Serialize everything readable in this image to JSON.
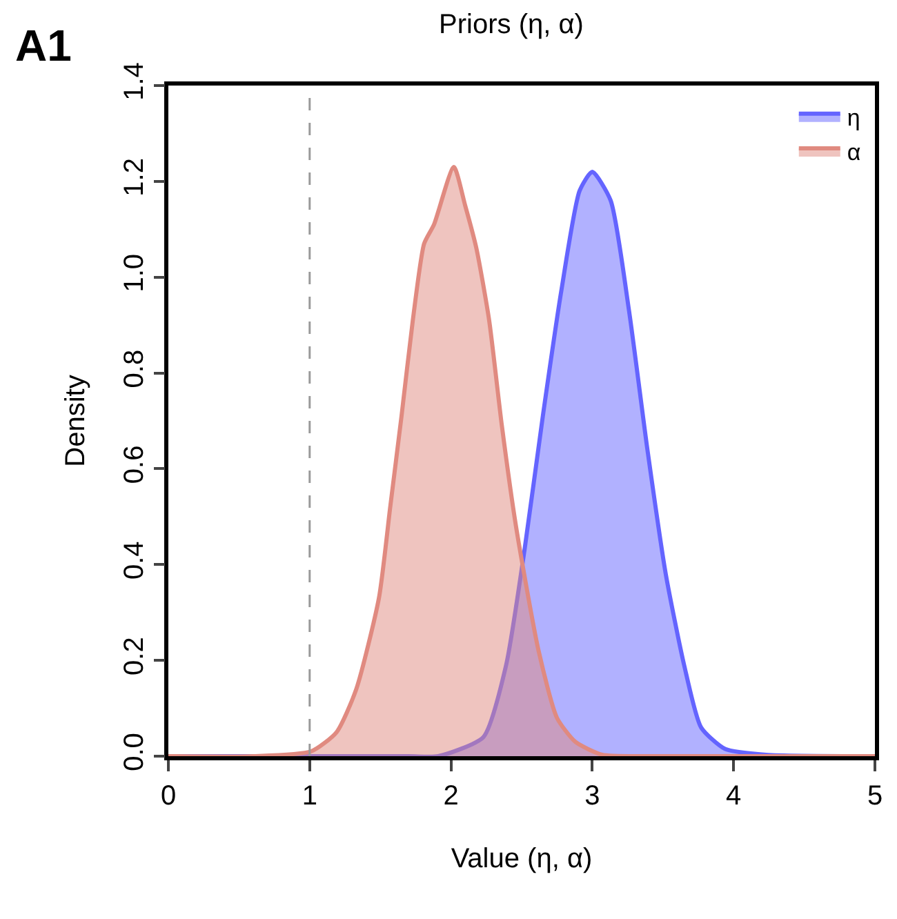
{
  "chart_data": {
    "type": "area",
    "title": "Priors (η, α)",
    "xlabel": "Value (η, α)",
    "ylabel": "Density",
    "annotations": [
      "A1"
    ],
    "xlim": [
      0,
      5
    ],
    "xticks": [
      0,
      1,
      2,
      3,
      4,
      5
    ],
    "ylim": [
      0,
      1.4
    ],
    "yticks": [
      {
        "value": 0,
        "label": "0.0"
      },
      0.2,
      0.4,
      0.6,
      0.8,
      {
        "value": 1,
        "label": "1.0"
      },
      1.2,
      1.4
    ],
    "legend": "top right",
    "marker": "none",
    "line_style": "solid",
    "ref_lines": [
      {
        "axis": "x",
        "value": 1,
        "label": null,
        "color": "#999999",
        "line_style": "dashed"
      }
    ],
    "series": [
      {
        "name": "η",
        "color": "#6464ff",
        "x": [
          0,
          1.7,
          1.91,
          2.23,
          2.39,
          2.52,
          2.65,
          2.78,
          2.91,
          3.0,
          3.13,
          3.26,
          3.39,
          3.52,
          3.65,
          3.77,
          3.94,
          4.23,
          5
        ],
        "values": [
          0,
          0,
          0.0,
          0.04,
          0.19,
          0.43,
          0.71,
          0.97,
          1.18,
          1.22,
          1.16,
          0.93,
          0.64,
          0.38,
          0.19,
          0.06,
          0.015,
          0.003,
          0
        ]
      },
      {
        "name": "α",
        "color": "#e08a80",
        "x": [
          0,
          0.6,
          1.01,
          1.19,
          1.33,
          1.49,
          1.57,
          1.65,
          1.73,
          1.81,
          1.88,
          2.02,
          2.1,
          2.18,
          2.27,
          2.36,
          2.46,
          2.62,
          2.75,
          2.88,
          3.07,
          3.4,
          5
        ],
        "values": [
          0,
          0,
          0.01,
          0.05,
          0.14,
          0.33,
          0.52,
          0.71,
          0.91,
          1.07,
          1.11,
          1.23,
          1.15,
          1.06,
          0.91,
          0.69,
          0.48,
          0.22,
          0.08,
          0.03,
          0.003,
          0,
          0
        ]
      }
    ]
  }
}
